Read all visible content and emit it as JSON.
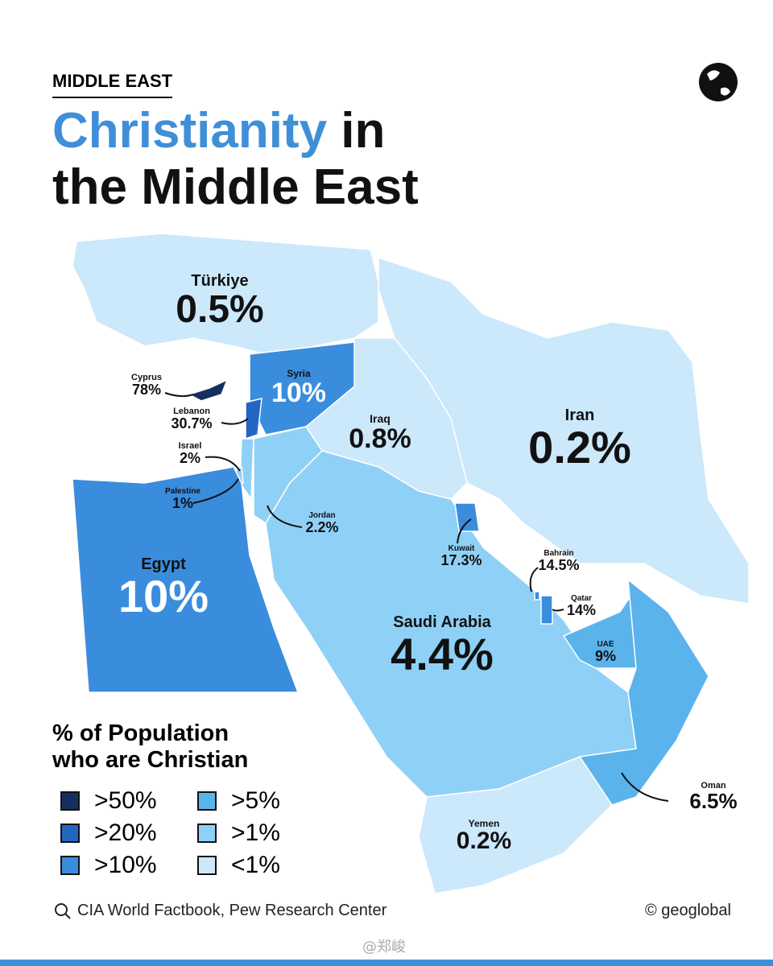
{
  "header": {
    "kicker": "MIDDLE EAST",
    "title_highlight": "Christianity",
    "title_rest": "in",
    "title_line2": "the Middle East"
  },
  "countries": [
    {
      "name": "Türkiye",
      "value": "0.5%",
      "color": "#cce8fb"
    },
    {
      "name": "Syria",
      "value": "10%",
      "color": "#3a8ddd"
    },
    {
      "name": "Cyprus",
      "value": "78%",
      "color": "#15305e"
    },
    {
      "name": "Lebanon",
      "value": "30.7%",
      "color": "#2366c2"
    },
    {
      "name": "Israel",
      "value": "2%",
      "color": "#8fd0f7"
    },
    {
      "name": "Palestine",
      "value": "1%",
      "color": "#8fd0f7"
    },
    {
      "name": "Iraq",
      "value": "0.8%",
      "color": "#cce8fb"
    },
    {
      "name": "Iran",
      "value": "0.2%",
      "color": "#cce8fb"
    },
    {
      "name": "Jordan",
      "value": "2.2%",
      "color": "#8fd0f7"
    },
    {
      "name": "Kuwait",
      "value": "17.3%",
      "color": "#3a8ddd"
    },
    {
      "name": "Egypt",
      "value": "10%",
      "color": "#3a8ddd"
    },
    {
      "name": "Bahrain",
      "value": "14.5%",
      "color": "#3a8ddd"
    },
    {
      "name": "Qatar",
      "value": "14%",
      "color": "#3a8ddd"
    },
    {
      "name": "Saudi Arabia",
      "value": "4.4%",
      "color": "#8fd0f7"
    },
    {
      "name": "UAE",
      "value": "9%",
      "color": "#5bb3ec"
    },
    {
      "name": "Oman",
      "value": "6.5%",
      "color": "#5bb3ec"
    },
    {
      "name": "Yemen",
      "value": "0.2%",
      "color": "#cce8fb"
    }
  ],
  "legend": {
    "title_line1": "% of Population",
    "title_line2": "who are Christian",
    "items": [
      {
        "label": ">50%",
        "color": "#15305e"
      },
      {
        "label": ">5%",
        "color": "#5bb3ec"
      },
      {
        "label": ">20%",
        "color": "#2366c2"
      },
      {
        "label": ">1%",
        "color": "#8fd0f7"
      },
      {
        "label": ">10%",
        "color": "#3a8ddd"
      },
      {
        "label": "<1%",
        "color": "#cce8fb"
      }
    ]
  },
  "footer": {
    "source": "CIA World Factbook, Pew Research Center",
    "credit": "© geoglobal",
    "watermark": "@郑峻"
  }
}
